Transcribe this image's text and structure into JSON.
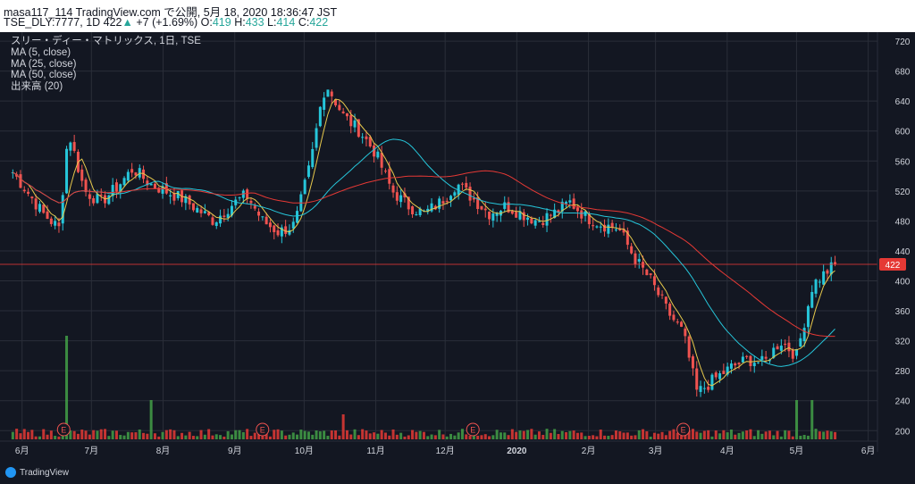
{
  "header": {
    "line1": "masa117_114 TradingView.com で公開, 5月 18, 2020 18:36:47 JST",
    "ticker": "TSE_DLY:7777, 1D",
    "last": "422",
    "change": "+7 (+1.69%)",
    "o_label": "O:",
    "o": "419",
    "h_label": "H:",
    "h": "433",
    "l_label": "L:",
    "l": "414",
    "c_label": "C:",
    "c": "422"
  },
  "legend": {
    "title": "スリー・ディー・マトリックス, 1日, TSE",
    "ma5": "MA (5, close)",
    "ma25": "MA (25, close)",
    "ma50": "MA (50, close)",
    "volume": "出来高 (20)"
  },
  "logo": {
    "text": "TradingView"
  },
  "colors": {
    "background": "#131722",
    "up": "#26c6da",
    "down": "#ef5350",
    "vol_up": "#43a047",
    "vol_down": "#e53935",
    "ma5": "#e6c84c",
    "ma25": "#26c6da",
    "ma50": "#e53935",
    "price_line": "#e53935",
    "grid": "#2a2e39",
    "axis_text": "#d1d4dc"
  },
  "chart_data": {
    "type": "candlestick",
    "x_ticks": [
      "6月",
      "7月",
      "8月",
      "9月",
      "10月",
      "11月",
      "12月",
      "2020",
      "2月",
      "3月",
      "4月",
      "5月",
      "6月"
    ],
    "y_ticks": [
      200,
      240,
      280,
      320,
      360,
      400,
      440,
      480,
      520,
      560,
      600,
      640,
      680,
      720
    ],
    "ylim": [
      186,
      732
    ],
    "last_price": 422,
    "last_price_label": "422",
    "earnings_marker": "E",
    "earnings_months": [
      "6月",
      "9月",
      "12月",
      "3月"
    ],
    "close_path": [
      {
        "m": "2019-05-28",
        "v": 545
      },
      {
        "m": "2019-06-03",
        "v": 520
      },
      {
        "m": "2019-06-10",
        "v": 490
      },
      {
        "m": "2019-06-17",
        "v": 470
      },
      {
        "m": "2019-06-21",
        "v": 600
      },
      {
        "m": "2019-06-28",
        "v": 520
      },
      {
        "m": "2019-07-05",
        "v": 505
      },
      {
        "m": "2019-07-12",
        "v": 525
      },
      {
        "m": "2019-07-19",
        "v": 550
      },
      {
        "m": "2019-07-26",
        "v": 530
      },
      {
        "m": "2019-08-02",
        "v": 520
      },
      {
        "m": "2019-08-09",
        "v": 510
      },
      {
        "m": "2019-08-16",
        "v": 495
      },
      {
        "m": "2019-08-23",
        "v": 480
      },
      {
        "m": "2019-08-30",
        "v": 500
      },
      {
        "m": "2019-09-06",
        "v": 515
      },
      {
        "m": "2019-09-13",
        "v": 480
      },
      {
        "m": "2019-09-20",
        "v": 465
      },
      {
        "m": "2019-09-27",
        "v": 475
      },
      {
        "m": "2019-10-04",
        "v": 560
      },
      {
        "m": "2019-10-09",
        "v": 650
      },
      {
        "m": "2019-10-11",
        "v": 660
      },
      {
        "m": "2019-10-18",
        "v": 620
      },
      {
        "m": "2019-10-25",
        "v": 600
      },
      {
        "m": "2019-11-01",
        "v": 570
      },
      {
        "m": "2019-11-08",
        "v": 520
      },
      {
        "m": "2019-11-15",
        "v": 500
      },
      {
        "m": "2019-11-22",
        "v": 490
      },
      {
        "m": "2019-11-29",
        "v": 505
      },
      {
        "m": "2019-12-06",
        "v": 530
      },
      {
        "m": "2019-12-13",
        "v": 510
      },
      {
        "m": "2019-12-20",
        "v": 490
      },
      {
        "m": "2019-12-27",
        "v": 500
      },
      {
        "m": "2020-01-10",
        "v": 480
      },
      {
        "m": "2020-01-17",
        "v": 490
      },
      {
        "m": "2020-01-24",
        "v": 505
      },
      {
        "m": "2020-01-31",
        "v": 485
      },
      {
        "m": "2020-02-07",
        "v": 475
      },
      {
        "m": "2020-02-14",
        "v": 470
      },
      {
        "m": "2020-02-21",
        "v": 430
      },
      {
        "m": "2020-02-28",
        "v": 400
      },
      {
        "m": "2020-03-06",
        "v": 360
      },
      {
        "m": "2020-03-13",
        "v": 330
      },
      {
        "m": "2020-03-19",
        "v": 250
      },
      {
        "m": "2020-03-27",
        "v": 270
      },
      {
        "m": "2020-04-03",
        "v": 285
      },
      {
        "m": "2020-04-10",
        "v": 295
      },
      {
        "m": "2020-04-17",
        "v": 290
      },
      {
        "m": "2020-04-24",
        "v": 320
      },
      {
        "m": "2020-05-01",
        "v": 300
      },
      {
        "m": "2020-05-08",
        "v": 395
      },
      {
        "m": "2020-05-15",
        "v": 415
      },
      {
        "m": "2020-05-18",
        "v": 422
      }
    ],
    "volume_spikes": [
      {
        "m": "2019-06-21",
        "v": "high"
      },
      {
        "m": "2019-07-26",
        "v": "mid"
      },
      {
        "m": "2019-10-18",
        "v": "low"
      },
      {
        "m": "2020-05-01",
        "v": "mid"
      },
      {
        "m": "2020-05-08",
        "v": "mid"
      }
    ]
  }
}
